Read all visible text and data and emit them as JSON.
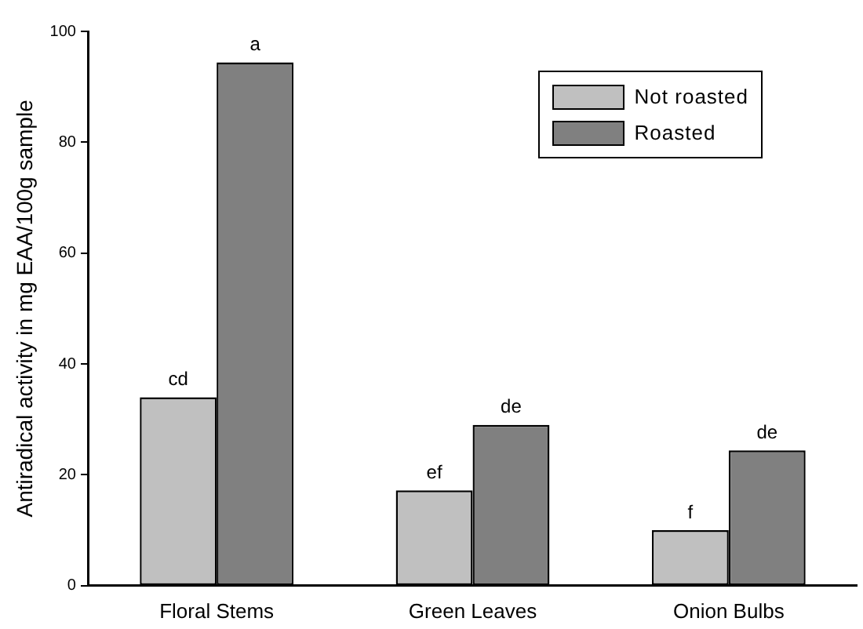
{
  "chart_data": {
    "type": "bar",
    "ylabel": "Antiradical activity in mg EAA/100g sample",
    "categories": [
      "Floral Stems",
      "Green Leaves",
      "Onion Bulbs"
    ],
    "series": [
      {
        "name": "Not roasted",
        "color": "#c0c0c0",
        "values": [
          34,
          17.2,
          10
        ],
        "value_labels": [
          "cd",
          "ef",
          "f"
        ]
      },
      {
        "name": "Roasted",
        "color": "#808080",
        "values": [
          94.4,
          29,
          24.4
        ],
        "value_labels": [
          "a",
          "de",
          "de"
        ]
      }
    ],
    "ylim": [
      0,
      100
    ],
    "yticks": [
      0,
      20,
      40,
      60,
      80,
      100
    ],
    "grid": false,
    "legend": "top right"
  }
}
